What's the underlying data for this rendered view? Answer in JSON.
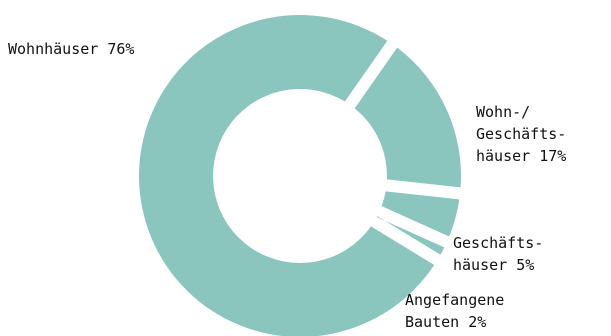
{
  "chart_data": {
    "type": "pie",
    "title": "",
    "slice_color": "#8ac6be",
    "background": "#ffffff",
    "slices": [
      {
        "label_lines": [
          "Wohnhäuser 76%"
        ],
        "value": 76
      },
      {
        "label_lines": [
          "Wohn-/",
          "Geschäfts-",
          "häuser 17%"
        ],
        "value": 17
      },
      {
        "label_lines": [
          "Geschäfts-",
          "häuser 5%"
        ],
        "value": 5
      },
      {
        "label_lines": [
          "Angefangene",
          "Bauten 2%"
        ],
        "value": 2
      }
    ]
  }
}
